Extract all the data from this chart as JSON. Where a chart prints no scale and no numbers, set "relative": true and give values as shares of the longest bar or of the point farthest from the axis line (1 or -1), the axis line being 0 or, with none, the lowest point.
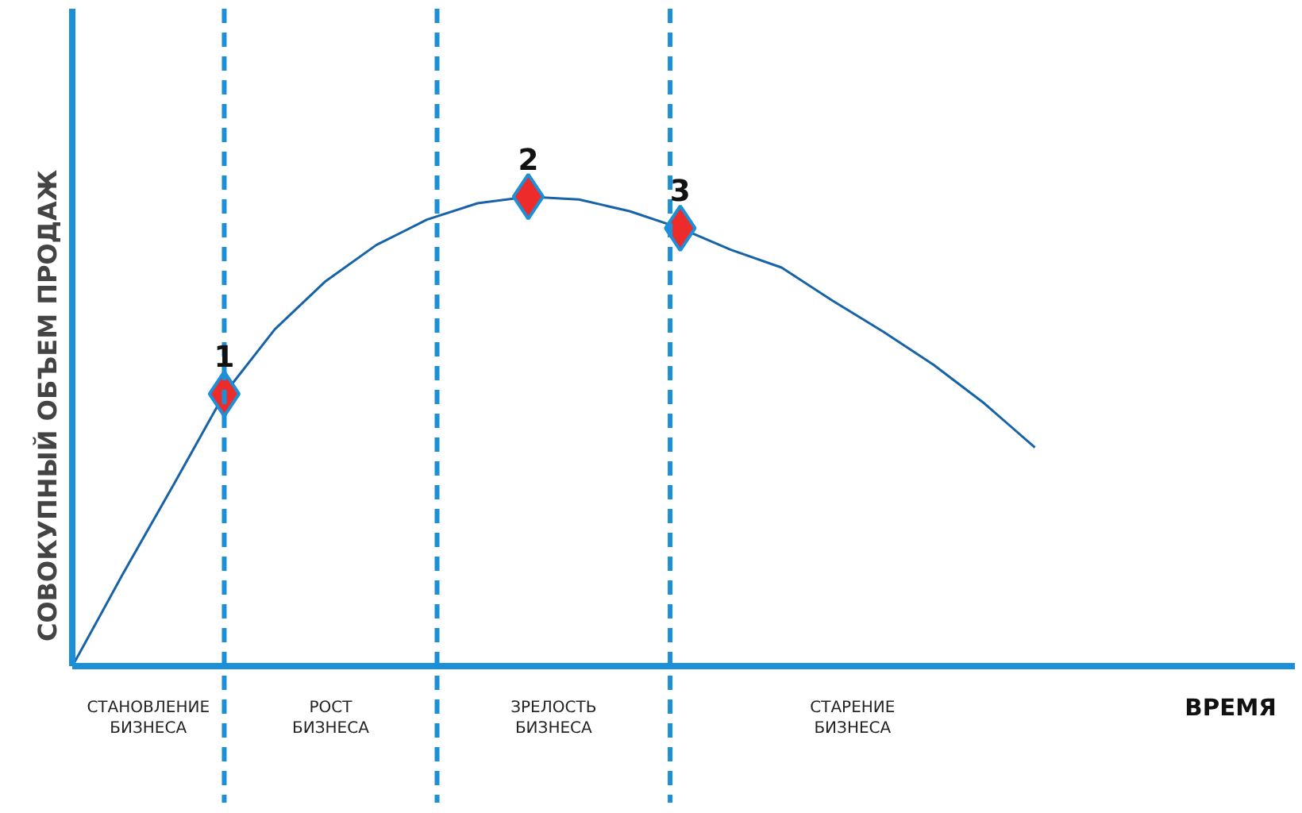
{
  "chart_data": {
    "type": "line",
    "relative": true,
    "ylabel": "СОВОКУПНЫЙ ОБЪЕМ ПРОДАЖ",
    "categories": [
      null,
      null,
      null,
      null,
      null,
      null,
      null,
      null,
      null,
      null,
      null,
      null,
      null,
      null,
      null,
      null,
      null,
      null,
      null,
      null
    ],
    "series": [
      {
        "color": "#1763a8",
        "values": [
          0,
          0.197,
          0.387,
          0.58,
          0.718,
          0.82,
          0.897,
          0.951,
          0.986,
          1.0,
          0.994,
          0.969,
          0.933,
          0.887,
          0.849,
          0.779,
          0.713,
          0.642,
          0.56,
          0.466
        ]
      }
    ],
    "annotations": [
      {
        "text": "1",
        "y": 0.58
      },
      {
        "text": "2",
        "y": 1.0
      },
      {
        "text": "3",
        "y": 0.933
      },
      "СТАНОВЛЕНИЕ\nБИЗНЕСА",
      "РОСТ\nБИЗНЕСА",
      "ЗРЕЛОСТЬ\nБИЗНЕСА",
      "СТАРЕНИЕ\nБИЗНЕСА",
      "ВРЕМЯ"
    ]
  }
}
